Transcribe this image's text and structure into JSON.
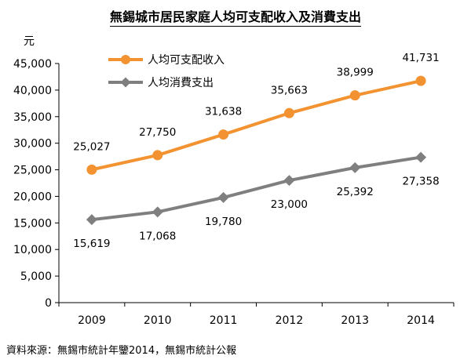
{
  "chart_data": {
    "type": "line",
    "title": "無錫城市居民家庭人均可支配收入及消費支出",
    "unit_label": "元",
    "source": "資料來源：無錫市統計年鑒2014，無錫市統計公報",
    "x": [
      "2009",
      "2010",
      "2011",
      "2012",
      "2013",
      "2014"
    ],
    "ylim": [
      0,
      45000
    ],
    "yticks": [
      "0",
      "5,000",
      "10,000",
      "15,000",
      "20,000",
      "25,000",
      "30,000",
      "35,000",
      "40,000",
      "45,000"
    ],
    "grid": false,
    "legend_position": "top-left",
    "series": [
      {
        "name": "人均可支配收入",
        "color": "#f39230",
        "marker": "circle",
        "values": [
          25027,
          27750,
          31638,
          35663,
          38999,
          41731
        ],
        "labels": [
          "25,027",
          "27,750",
          "31,638",
          "35,663",
          "38,999",
          "41,731"
        ],
        "label_position": "above"
      },
      {
        "name": "人均消費支出",
        "color": "#7f7f7f",
        "marker": "diamond",
        "values": [
          15619,
          17068,
          19780,
          23000,
          25392,
          27358
        ],
        "labels": [
          "15,619",
          "17,068",
          "19,780",
          "23,000",
          "25,392",
          "27,358"
        ],
        "label_position": "below"
      }
    ]
  }
}
